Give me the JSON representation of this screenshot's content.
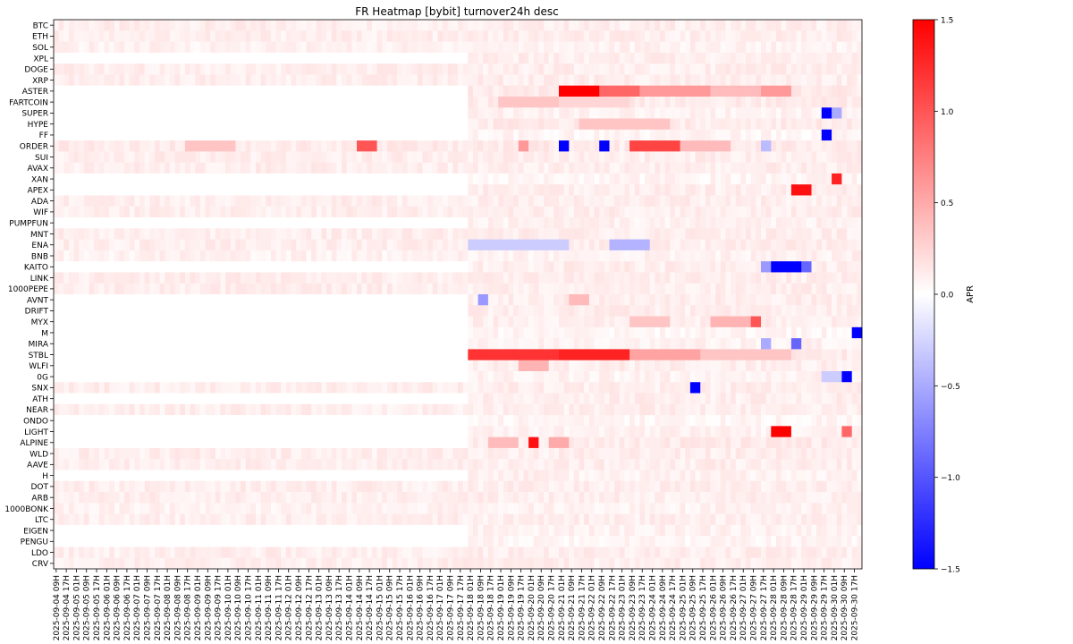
{
  "chart_data": {
    "type": "heatmap",
    "title": "FR Heatmap [bybit] turnover24h desc",
    "colorbar": {
      "label": "APR",
      "range": [
        -1.5,
        1.5
      ],
      "ticks": [
        "1.5",
        "1.0",
        "0.5",
        "0.0",
        "−0.5",
        "−1.0",
        "−1.5"
      ],
      "tick_values": [
        1.5,
        1.0,
        0.5,
        0.0,
        -0.5,
        -1.0,
        -1.5
      ],
      "colors": {
        "low": "#0000ff",
        "mid": "#ffffff",
        "high": "#ff0000"
      }
    },
    "rows": [
      "BTC",
      "ETH",
      "SOL",
      "XPL",
      "DOGE",
      "XRP",
      "ASTER",
      "FARTCOIN",
      "SUPER",
      "HYPE",
      "FF",
      "ORDER",
      "SUI",
      "AVAX",
      "XAN",
      "APEX",
      "ADA",
      "WIF",
      "PUMPFUN",
      "MNT",
      "ENA",
      "BNB",
      "KAITO",
      "LINK",
      "1000PEPE",
      "AVNT",
      "DRIFT",
      "MYX",
      "M",
      "MIRA",
      "STBL",
      "WLFI",
      "0G",
      "SNX",
      "ATH",
      "NEAR",
      "ONDO",
      "LIGHT",
      "ALPINE",
      "WLD",
      "AAVE",
      "H",
      "DOT",
      "ARB",
      "1000BONK",
      "LTC",
      "EIGEN",
      "PENGU",
      "LDO",
      "CRV"
    ],
    "columns": [
      "2025-09-04 09H",
      "2025-09-04 17H",
      "2025-09-05 01H",
      "2025-09-05 09H",
      "2025-09-05 17H",
      "2025-09-06 01H",
      "2025-09-06 09H",
      "2025-09-06 17H",
      "2025-09-07 01H",
      "2025-09-07 09H",
      "2025-09-07 17H",
      "2025-09-08 01H",
      "2025-09-08 09H",
      "2025-09-08 17H",
      "2025-09-09 01H",
      "2025-09-09 09H",
      "2025-09-09 17H",
      "2025-09-10 01H",
      "2025-09-10 09H",
      "2025-09-10 17H",
      "2025-09-11 01H",
      "2025-09-11 09H",
      "2025-09-11 17H",
      "2025-09-12 01H",
      "2025-09-12 09H",
      "2025-09-12 17H",
      "2025-09-13 01H",
      "2025-09-13 09H",
      "2025-09-13 17H",
      "2025-09-14 01H",
      "2025-09-14 09H",
      "2025-09-14 17H",
      "2025-09-15 01H",
      "2025-09-15 09H",
      "2025-09-15 17H",
      "2025-09-16 01H",
      "2025-09-16 09H",
      "2025-09-16 17H",
      "2025-09-17 01H",
      "2025-09-17 09H",
      "2025-09-17 17H",
      "2025-09-18 01H",
      "2025-09-18 09H",
      "2025-09-18 17H",
      "2025-09-19 01H",
      "2025-09-19 09H",
      "2025-09-19 17H",
      "2025-09-20 01H",
      "2025-09-20 09H",
      "2025-09-20 17H",
      "2025-09-21 01H",
      "2025-09-21 09H",
      "2025-09-21 17H",
      "2025-09-22 01H",
      "2025-09-22 09H",
      "2025-09-22 17H",
      "2025-09-23 01H",
      "2025-09-23 09H",
      "2025-09-23 17H",
      "2025-09-24 01H",
      "2025-09-24 09H",
      "2025-09-24 17H",
      "2025-09-25 01H",
      "2025-09-25 09H",
      "2025-09-25 17H",
      "2025-09-26 01H",
      "2025-09-26 09H",
      "2025-09-26 17H",
      "2025-09-27 01H",
      "2025-09-27 09H",
      "2025-09-27 17H",
      "2025-09-28 01H",
      "2025-09-28 09H",
      "2025-09-28 17H",
      "2025-09-29 01H",
      "2025-09-29 09H",
      "2025-09-29 17H",
      "2025-09-30 01H",
      "2025-09-30 09H",
      "2025-09-30 17H"
    ],
    "subcolumns_per_label": 2,
    "baseline": {
      "BTC": 0.1,
      "ETH": 0.1,
      "SOL": 0.08,
      "XPL": 0.1,
      "DOGE": 0.1,
      "XRP": 0.1,
      "ASTER": 0.12,
      "FARTCOIN": 0.12,
      "SUPER": 0.08,
      "HYPE": 0.12,
      "FF": 0.06,
      "ORDER": 0.12,
      "SUI": 0.1,
      "AVAX": 0.1,
      "XAN": 0.06,
      "APEX": 0.1,
      "ADA": 0.1,
      "WIF": 0.1,
      "PUMPFUN": 0.08,
      "MNT": 0.1,
      "ENA": 0.1,
      "BNB": 0.08,
      "KAITO": 0.1,
      "LINK": 0.1,
      "1000PEPE": 0.1,
      "AVNT": 0.1,
      "DRIFT": 0.1,
      "MYX": 0.1,
      "M": 0.06,
      "MIRA": 0.08,
      "STBL": 0.12,
      "WLFI": 0.1,
      "0G": 0.08,
      "SNX": 0.1,
      "ATH": 0.1,
      "NEAR": 0.1,
      "ONDO": 0.06,
      "LIGHT": 0.08,
      "ALPINE": 0.12,
      "WLD": 0.1,
      "AAVE": 0.1,
      "H": 0.08,
      "DOT": 0.1,
      "ARB": 0.1,
      "1000BONK": 0.08,
      "LTC": 0.1,
      "EIGEN": 0.08,
      "PENGU": 0.06,
      "LDO": 0.1,
      "CRV": 0.1
    },
    "listed_from_column_index": {
      "XPL": 41,
      "ASTER": 41,
      "FARTCOIN": 41,
      "SUPER": 41,
      "HYPE": 41,
      "FF": 41,
      "XAN": 41,
      "APEX": 41,
      "PUMPFUN": 41,
      "KAITO": 41,
      "AVNT": 41,
      "DRIFT": 41,
      "MYX": 41,
      "M": 41,
      "MIRA": 41,
      "STBL": 41,
      "WLFI": 41,
      "0G": 41,
      "ATH": 41,
      "ONDO": 41,
      "LIGHT": 41,
      "ALPINE": 41,
      "H": 41,
      "EIGEN": 41,
      "PENGU": 41
    },
    "highlights": [
      {
        "row": "ASTER",
        "from": 50,
        "to": 53,
        "value": 1.5
      },
      {
        "row": "ASTER",
        "from": 54,
        "to": 57,
        "value": 0.9
      },
      {
        "row": "ASTER",
        "from": 58,
        "to": 64,
        "value": 0.6
      },
      {
        "row": "ASTER",
        "from": 65,
        "to": 69,
        "value": 0.4
      },
      {
        "row": "ASTER",
        "from": 70,
        "to": 72,
        "value": 0.6
      },
      {
        "row": "FARTCOIN",
        "from": 44,
        "to": 49,
        "value": 0.35
      },
      {
        "row": "FARTCOIN",
        "from": 50,
        "to": 56,
        "value": 0.25
      },
      {
        "row": "SUPER",
        "from": 76,
        "to": 76,
        "value": -1.5
      },
      {
        "row": "SUPER",
        "from": 77,
        "to": 77,
        "value": -0.5
      },
      {
        "row": "HYPE",
        "from": 52,
        "to": 60,
        "value": 0.35
      },
      {
        "row": "FF",
        "from": 76,
        "to": 76,
        "value": -1.5
      },
      {
        "row": "ORDER",
        "from": 13,
        "to": 17,
        "value": 0.35
      },
      {
        "row": "ORDER",
        "from": 30,
        "to": 31,
        "value": 1.0
      },
      {
        "row": "ORDER",
        "from": 46,
        "to": 46,
        "value": 0.6
      },
      {
        "row": "ORDER",
        "from": 50,
        "to": 50,
        "value": -1.5
      },
      {
        "row": "ORDER",
        "from": 54,
        "to": 54,
        "value": -1.5
      },
      {
        "row": "ORDER",
        "from": 57,
        "to": 61,
        "value": 1.1
      },
      {
        "row": "ORDER",
        "from": 62,
        "to": 66,
        "value": 0.4
      },
      {
        "row": "ORDER",
        "from": 70,
        "to": 70,
        "value": -0.4
      },
      {
        "row": "APEX",
        "from": 73,
        "to": 74,
        "value": 1.4
      },
      {
        "row": "XAN",
        "from": 77,
        "to": 77,
        "value": 1.3
      },
      {
        "row": "ENA",
        "from": 41,
        "to": 50,
        "value": -0.3
      },
      {
        "row": "ENA",
        "from": 55,
        "to": 58,
        "value": -0.45
      },
      {
        "row": "KAITO",
        "from": 70,
        "to": 70,
        "value": -0.6
      },
      {
        "row": "KAITO",
        "from": 71,
        "to": 73,
        "value": -1.5
      },
      {
        "row": "KAITO",
        "from": 74,
        "to": 74,
        "value": -0.9
      },
      {
        "row": "AVNT",
        "from": 42,
        "to": 42,
        "value": -0.6
      },
      {
        "row": "AVNT",
        "from": 51,
        "to": 52,
        "value": 0.4
      },
      {
        "row": "MYX",
        "from": 57,
        "to": 60,
        "value": 0.35
      },
      {
        "row": "MYX",
        "from": 65,
        "to": 68,
        "value": 0.45
      },
      {
        "row": "MYX",
        "from": 69,
        "to": 69,
        "value": 1.0
      },
      {
        "row": "M",
        "from": 79,
        "to": 79,
        "value": -1.5
      },
      {
        "row": "MIRA",
        "from": 70,
        "to": 70,
        "value": -0.5
      },
      {
        "row": "MIRA",
        "from": 73,
        "to": 73,
        "value": -0.9
      },
      {
        "row": "STBL",
        "from": 41,
        "to": 49,
        "value": 1.2
      },
      {
        "row": "STBL",
        "from": 50,
        "to": 56,
        "value": 1.3
      },
      {
        "row": "STBL",
        "from": 57,
        "to": 63,
        "value": 0.55
      },
      {
        "row": "STBL",
        "from": 64,
        "to": 72,
        "value": 0.35
      },
      {
        "row": "WLFI",
        "from": 46,
        "to": 48,
        "value": 0.45
      },
      {
        "row": "0G",
        "from": 78,
        "to": 78,
        "value": -1.5
      },
      {
        "row": "0G",
        "from": 76,
        "to": 77,
        "value": -0.3
      },
      {
        "row": "SNX",
        "from": 63,
        "to": 63,
        "value": -1.5
      },
      {
        "row": "LIGHT",
        "from": 71,
        "to": 72,
        "value": 1.5
      },
      {
        "row": "LIGHT",
        "from": 78,
        "to": 78,
        "value": 0.9
      },
      {
        "row": "ALPINE",
        "from": 47,
        "to": 47,
        "value": 1.4
      },
      {
        "row": "ALPINE",
        "from": 43,
        "to": 45,
        "value": 0.4
      },
      {
        "row": "ALPINE",
        "from": 49,
        "to": 50,
        "value": 0.5
      }
    ]
  }
}
